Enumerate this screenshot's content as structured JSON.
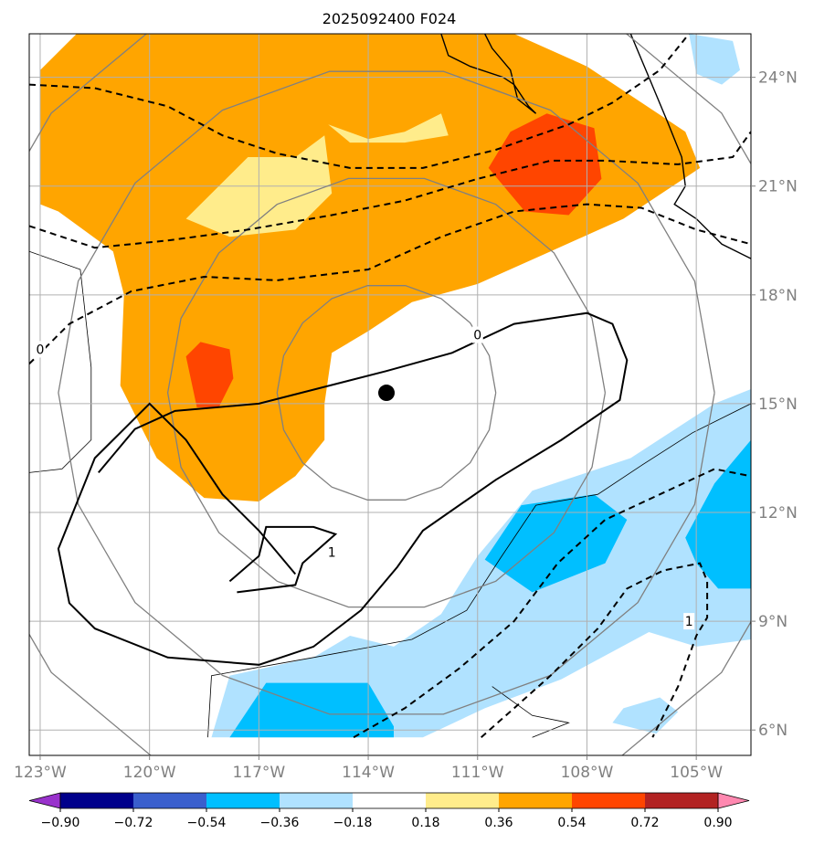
{
  "chart_data": {
    "type": "contour-map",
    "title": "2025092400 F024",
    "lon_range": [
      -123.3,
      -103.5
    ],
    "lat_range": [
      5.3,
      25.2
    ],
    "x_ticks": [
      -123,
      -120,
      -117,
      -114,
      -111,
      -108,
      -105
    ],
    "x_tick_labels": [
      "123°W",
      "120°W",
      "117°W",
      "114°W",
      "111°W",
      "108°W",
      "105°W"
    ],
    "y_ticks": [
      6,
      9,
      12,
      15,
      18,
      21,
      24
    ],
    "y_tick_labels": [
      "6°N",
      "9°N",
      "12°N",
      "15°N",
      "18°N",
      "21°N",
      "24°N"
    ],
    "storm_center": {
      "lon": -113.5,
      "lat": 15.3
    },
    "range_rings_deg": [
      3,
      6,
      9,
      12
    ],
    "colorbar": {
      "levels": [
        -0.9,
        -0.72,
        -0.54,
        -0.36,
        -0.18,
        0.18,
        0.36,
        0.54,
        0.72,
        0.9
      ],
      "labels": [
        "−0.90",
        "−0.72",
        "−0.54",
        "−0.36",
        "−0.18",
        "0.18",
        "0.36",
        "0.54",
        "0.72",
        "0.90"
      ],
      "colors": [
        "#9932cc",
        "#00008b",
        "#3a5fcd",
        "#00bfff",
        "#b0e2ff",
        "#ffffff",
        "#ffec8b",
        "#ffa500",
        "#ff4500",
        "#b22222",
        "#ff88b0"
      ]
    },
    "contour_labels": [
      {
        "text": "0",
        "lon": -123,
        "lat": 16.5
      },
      {
        "text": "0",
        "lon": -111,
        "lat": 16.9
      },
      {
        "text": "1",
        "lon": -115.0,
        "lat": 10.9
      },
      {
        "text": "1",
        "lon": -105.2,
        "lat": 9.0
      }
    ],
    "filled_regions": [
      {
        "name": "orange-north",
        "color": "#ffa500",
        "pts": [
          [
            -123,
            24.2
          ],
          [
            -122,
            25.2
          ],
          [
            -110,
            25.2
          ],
          [
            -108,
            24.3
          ],
          [
            -105.3,
            22.5
          ],
          [
            -104.9,
            21.5
          ],
          [
            -107,
            20.1
          ],
          [
            -109,
            19.2
          ],
          [
            -111,
            18.3
          ],
          [
            -112.8,
            17.8
          ],
          [
            -114,
            17
          ],
          [
            -115,
            16.4
          ],
          [
            -115.2,
            15
          ],
          [
            -115.2,
            14
          ],
          [
            -116,
            13
          ],
          [
            -117,
            12.3
          ],
          [
            -118.5,
            12.4
          ],
          [
            -119.8,
            13.5
          ],
          [
            -120.8,
            15.5
          ],
          [
            -120.7,
            18
          ],
          [
            -121,
            19.2
          ],
          [
            -122.5,
            20.3
          ],
          [
            -123,
            20.5
          ]
        ]
      },
      {
        "name": "yellow-north-island",
        "color": "#ffec8b",
        "pts": [
          [
            -117.3,
            21.8
          ],
          [
            -116,
            21.8
          ],
          [
            -115.2,
            22.4
          ],
          [
            -115,
            20.8
          ],
          [
            -116,
            19.8
          ],
          [
            -117.8,
            19.6
          ],
          [
            -119,
            20.1
          ]
        ]
      },
      {
        "name": "yellow-north-island2",
        "color": "#ffec8b",
        "pts": [
          [
            -115.1,
            22.7
          ],
          [
            -114,
            22.3
          ],
          [
            -113,
            22.5
          ],
          [
            -112,
            23
          ],
          [
            -111.8,
            22.4
          ],
          [
            -113,
            22.2
          ],
          [
            -114.5,
            22.2
          ]
        ]
      },
      {
        "name": "red-north",
        "color": "#ff4500",
        "pts": [
          [
            -110.7,
            21.5
          ],
          [
            -110.1,
            22.5
          ],
          [
            -109.1,
            23.0
          ],
          [
            -107.8,
            22.6
          ],
          [
            -107.6,
            21.2
          ],
          [
            -108.5,
            20.2
          ],
          [
            -109.7,
            20.3
          ]
        ]
      },
      {
        "name": "red-west",
        "color": "#ff4500",
        "pts": [
          [
            -119.0,
            16.3
          ],
          [
            -118.7,
            14.9
          ],
          [
            -118.1,
            14.9
          ],
          [
            -117.7,
            15.7
          ],
          [
            -117.8,
            16.5
          ],
          [
            -118.6,
            16.7
          ]
        ]
      },
      {
        "name": "blue-south-dark",
        "color": "#00bfff",
        "pts": [
          [
            -117.8,
            5.8
          ],
          [
            -116.8,
            7.3
          ],
          [
            -114.0,
            7.3
          ],
          [
            -113.3,
            6.1
          ],
          [
            -113.3,
            5.8
          ]
        ]
      },
      {
        "name": "blue-se-dark",
        "color": "#00bfff",
        "pts": [
          [
            -110.8,
            10.7
          ],
          [
            -109.8,
            12.2
          ],
          [
            -107.8,
            12.5
          ],
          [
            -106.9,
            11.8
          ],
          [
            -107.5,
            10.6
          ],
          [
            -109.5,
            9.8
          ]
        ]
      },
      {
        "name": "blue-east-dark",
        "color": "#00bfff",
        "pts": [
          [
            -105.3,
            11.3
          ],
          [
            -104.5,
            12.8
          ],
          [
            -103.5,
            14.0
          ],
          [
            -103.5,
            9.9
          ],
          [
            -104.4,
            9.9
          ],
          [
            -105.0,
            10.6
          ]
        ]
      }
    ],
    "light_blue_regions": [
      {
        "name": "lightblue-south",
        "color": "#b0e2ff",
        "pts": [
          [
            -118.3,
            5.8
          ],
          [
            -117.8,
            7.5
          ],
          [
            -115.5,
            8.0
          ],
          [
            -114.5,
            8.6
          ],
          [
            -113.3,
            8.3
          ],
          [
            -112,
            9.2
          ],
          [
            -111,
            10.8
          ],
          [
            -109.5,
            12.6
          ],
          [
            -106.8,
            13.5
          ],
          [
            -104.5,
            15.0
          ],
          [
            -103.5,
            15.4
          ],
          [
            -103.5,
            8.5
          ],
          [
            -105.0,
            8.3
          ],
          [
            -106.3,
            8.7
          ],
          [
            -108.7,
            7.4
          ],
          [
            -110.8,
            6.6
          ],
          [
            -112.5,
            5.8
          ]
        ]
      },
      {
        "name": "lightblue-ne",
        "color": "#b0e2ff",
        "pts": [
          [
            -105.2,
            25.2
          ],
          [
            -104.0,
            25.0
          ],
          [
            -103.8,
            24.2
          ],
          [
            -104.3,
            23.8
          ],
          [
            -105.0,
            24.1
          ]
        ]
      },
      {
        "name": "lightblue-se-small",
        "color": "#b0e2ff",
        "pts": [
          [
            -107.0,
            6.6
          ],
          [
            -106.0,
            6.9
          ],
          [
            -105.5,
            6.5
          ],
          [
            -106.1,
            5.9
          ],
          [
            -107.3,
            6.2
          ]
        ]
      }
    ],
    "contour_lines": [
      {
        "name": "solid-line",
        "style": "solid",
        "pts": [
          [
            -116,
            10.3
          ],
          [
            -117,
            11.5
          ],
          [
            -118,
            12.5
          ],
          [
            -119,
            14
          ],
          [
            -120,
            15
          ],
          [
            -121.5,
            13.5
          ],
          [
            -122.5,
            11
          ],
          [
            -122.2,
            9.5
          ],
          [
            -121.5,
            8.8
          ],
          [
            -119.5,
            8.0
          ],
          [
            -117,
            7.8
          ],
          [
            -115.5,
            8.3
          ],
          [
            -114.2,
            9.3
          ],
          [
            -113.2,
            10.5
          ],
          [
            -112.5,
            11.5
          ],
          [
            -110.5,
            12.9
          ],
          [
            -108.7,
            14.0
          ],
          [
            -107.1,
            15.1
          ],
          [
            -106.9,
            16.2
          ],
          [
            -107.3,
            17.2
          ],
          [
            -108,
            17.5
          ],
          [
            -110,
            17.2
          ],
          [
            -111.7,
            16.4
          ],
          [
            -113.5,
            15.9
          ],
          [
            -117,
            15.0
          ],
          [
            -119.3,
            14.8
          ],
          [
            -120.4,
            14.3
          ],
          [
            -121.4,
            13.1
          ]
        ]
      },
      {
        "name": "solid-inner",
        "style": "solid",
        "pts": [
          [
            -117.8,
            10.1
          ],
          [
            -117.0,
            10.8
          ],
          [
            -116.8,
            11.6
          ],
          [
            -115.5,
            11.6
          ],
          [
            -114.9,
            11.4
          ],
          [
            -115.8,
            10.6
          ],
          [
            -116.0,
            10.0
          ],
          [
            -117.6,
            9.8
          ]
        ]
      },
      {
        "name": "dash-1",
        "style": "dashed",
        "pts": [
          [
            -123.3,
            23.8
          ],
          [
            -121.5,
            23.7
          ],
          [
            -119.5,
            23.2
          ],
          [
            -118.0,
            22.4
          ],
          [
            -116.5,
            21.9
          ],
          [
            -114.5,
            21.5
          ],
          [
            -112.5,
            21.5
          ],
          [
            -110.5,
            22.0
          ],
          [
            -108.5,
            22.7
          ],
          [
            -107.3,
            23.3
          ],
          [
            -106.0,
            24.2
          ],
          [
            -105.2,
            25.2
          ]
        ]
      },
      {
        "name": "dash-2",
        "style": "dashed",
        "pts": [
          [
            -123.3,
            19.9
          ],
          [
            -121.5,
            19.3
          ],
          [
            -119.5,
            19.5
          ],
          [
            -117.3,
            19.8
          ],
          [
            -115.0,
            20.2
          ],
          [
            -113,
            20.6
          ],
          [
            -111,
            21.2
          ],
          [
            -109,
            21.7
          ],
          [
            -107.5,
            21.7
          ],
          [
            -105.5,
            21.6
          ],
          [
            -104,
            21.8
          ],
          [
            -103.5,
            22.5
          ]
        ]
      },
      {
        "name": "dash-3",
        "style": "dashed",
        "pts": [
          [
            -123.3,
            16.1
          ],
          [
            -122.2,
            17.2
          ],
          [
            -120.5,
            18.1
          ],
          [
            -118.5,
            18.5
          ],
          [
            -116.5,
            18.4
          ],
          [
            -114,
            18.7
          ],
          [
            -112,
            19.6
          ],
          [
            -110,
            20.3
          ],
          [
            -108,
            20.5
          ],
          [
            -106.5,
            20.4
          ],
          [
            -105,
            19.8
          ],
          [
            -103.5,
            19.4
          ]
        ]
      },
      {
        "name": "dash-south-1",
        "style": "dashed",
        "pts": [
          [
            -114.4,
            5.8
          ],
          [
            -113,
            6.6
          ],
          [
            -111.5,
            7.7
          ],
          [
            -110,
            9.0
          ],
          [
            -108.8,
            10.6
          ],
          [
            -107.5,
            11.8
          ],
          [
            -106,
            12.5
          ],
          [
            -104.5,
            13.2
          ],
          [
            -104,
            13.1
          ],
          [
            -103.5,
            13.0
          ]
        ]
      },
      {
        "name": "dash-south-2",
        "style": "dashed",
        "pts": [
          [
            -110.9,
            5.8
          ],
          [
            -110,
            6.6
          ],
          [
            -109,
            7.5
          ],
          [
            -107.7,
            8.8
          ],
          [
            -106.9,
            9.9
          ],
          [
            -105.9,
            10.4
          ],
          [
            -104.9,
            10.6
          ],
          [
            -104.7,
            10.1
          ],
          [
            -104.7,
            9.1
          ],
          [
            -105,
            8.6
          ],
          [
            -105.5,
            7.2
          ],
          [
            -106.2,
            5.8
          ]
        ]
      }
    ],
    "coast_lines": [
      {
        "name": "baja-coast",
        "pts": [
          [
            -112.0,
            25.2
          ],
          [
            -111.8,
            24.6
          ],
          [
            -111.2,
            24.3
          ],
          [
            -110.3,
            24.0
          ],
          [
            -110.0,
            23.8
          ],
          [
            -109.6,
            23.2
          ],
          [
            -109.4,
            23.0
          ],
          [
            -109.9,
            23.4
          ],
          [
            -110.1,
            24.2
          ],
          [
            -110.6,
            24.8
          ],
          [
            -110.8,
            25.2
          ]
        ]
      },
      {
        "name": "mainland-coast",
        "pts": [
          [
            -106.8,
            25.2
          ],
          [
            -106.3,
            24.0
          ],
          [
            -105.8,
            22.8
          ],
          [
            -105.4,
            21.8
          ],
          [
            -105.3,
            21.0
          ],
          [
            -105.6,
            20.5
          ],
          [
            -105.0,
            20.1
          ],
          [
            -104.3,
            19.4
          ],
          [
            -103.5,
            19.0
          ]
        ]
      },
      {
        "name": "thin-outline-1",
        "pts": [
          [
            -123.3,
            19.2
          ],
          [
            -121.9,
            18.7
          ],
          [
            -121.6,
            16.0
          ],
          [
            -121.6,
            14.0
          ],
          [
            -122.4,
            13.2
          ],
          [
            -123.3,
            13.1
          ]
        ]
      },
      {
        "name": "thin-outline-2",
        "pts": [
          [
            -118.4,
            5.8
          ],
          [
            -118.3,
            7.5
          ],
          [
            -115.5,
            8.0
          ],
          [
            -112.8,
            8.5
          ],
          [
            -111.3,
            9.3
          ],
          [
            -110.4,
            10.7
          ],
          [
            -109.4,
            12.2
          ],
          [
            -107.7,
            12.5
          ],
          [
            -106.5,
            13.3
          ],
          [
            -105.1,
            14.2
          ],
          [
            -103.5,
            15.0
          ]
        ]
      },
      {
        "name": "thin-outline-3",
        "pts": [
          [
            -110.6,
            7.2
          ],
          [
            -109.5,
            6.4
          ],
          [
            -108.5,
            6.2
          ],
          [
            -109.5,
            5.8
          ]
        ]
      }
    ]
  }
}
